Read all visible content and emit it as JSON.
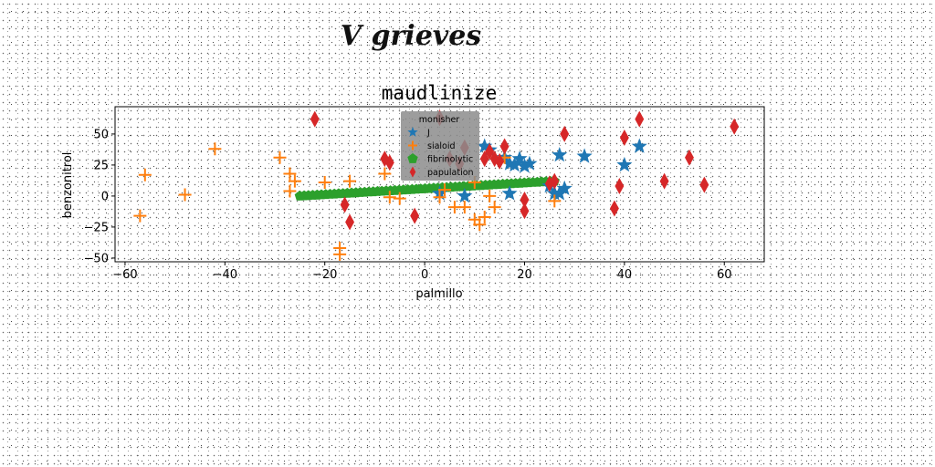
{
  "figure_title": "V grieves",
  "chart_data": {
    "type": "scatter",
    "title": "maudlinize",
    "xlabel": "palmillo",
    "ylabel": "benzonitrol",
    "xlim": [
      -62,
      68
    ],
    "ylim": [
      -53,
      72
    ],
    "xticks": [
      -60,
      -40,
      -20,
      0,
      20,
      40,
      60
    ],
    "xtick_labels": [
      "−60",
      "−40",
      "−20",
      "0",
      "20",
      "40",
      "60"
    ],
    "yticks": [
      -50,
      -25,
      0,
      25,
      50
    ],
    "ytick_labels": [
      "−50",
      "−25",
      "0",
      "25",
      "50"
    ],
    "grid": false,
    "legend": {
      "title": "monisher",
      "placement": "top-center"
    },
    "series": [
      {
        "name": "J",
        "color": "#1f77b4",
        "marker": "star",
        "points": [
          [
            12,
            40
          ],
          [
            13,
            37
          ],
          [
            16,
            31
          ],
          [
            17,
            26
          ],
          [
            18,
            25
          ],
          [
            19,
            30
          ],
          [
            20,
            24
          ],
          [
            21,
            26
          ],
          [
            27,
            33
          ],
          [
            32,
            32
          ],
          [
            40,
            25
          ],
          [
            43,
            40
          ],
          [
            28,
            6
          ],
          [
            25,
            8
          ],
          [
            8,
            0
          ],
          [
            17,
            2
          ],
          [
            3,
            2
          ],
          [
            27,
            2
          ],
          [
            26,
            2
          ]
        ]
      },
      {
        "name": "sialoid",
        "color": "#ff7f0e",
        "marker": "plus",
        "points": [
          [
            -56,
            17
          ],
          [
            -57,
            -16
          ],
          [
            -48,
            1
          ],
          [
            -42,
            38
          ],
          [
            -29,
            31
          ],
          [
            -27,
            18
          ],
          [
            -26,
            12
          ],
          [
            -27,
            4
          ],
          [
            -20,
            11
          ],
          [
            -15,
            12
          ],
          [
            -8,
            18
          ],
          [
            -17,
            -42
          ],
          [
            -17,
            -47
          ],
          [
            -7,
            -1
          ],
          [
            -5,
            -2
          ],
          [
            6,
            -9
          ],
          [
            8,
            -9
          ],
          [
            10,
            -19
          ],
          [
            11,
            -23
          ],
          [
            12,
            -17
          ],
          [
            13,
            0
          ],
          [
            14,
            -9
          ],
          [
            16,
            31
          ],
          [
            26,
            -4
          ],
          [
            4,
            5
          ],
          [
            10,
            11
          ],
          [
            3,
            -1
          ]
        ]
      },
      {
        "name": "fibrinolytic",
        "color": "#2ca02c",
        "marker": "pentagon",
        "line": {
          "from": [
            -25,
            0
          ],
          "to": [
            26,
            12
          ]
        }
      },
      {
        "name": "papulation",
        "color": "#d62728",
        "marker": "diamond",
        "points": [
          [
            -22,
            62
          ],
          [
            -16,
            -7
          ],
          [
            -15,
            -21
          ],
          [
            -8,
            30
          ],
          [
            -7,
            27
          ],
          [
            -2,
            -16
          ],
          [
            3,
            63
          ],
          [
            5,
            30
          ],
          [
            7,
            26
          ],
          [
            8,
            39
          ],
          [
            12,
            30
          ],
          [
            13,
            36
          ],
          [
            14,
            30
          ],
          [
            15,
            28
          ],
          [
            16,
            40
          ],
          [
            20,
            -3
          ],
          [
            20,
            -12
          ],
          [
            25,
            10
          ],
          [
            26,
            12
          ],
          [
            28,
            50
          ],
          [
            38,
            -10
          ],
          [
            39,
            8
          ],
          [
            40,
            47
          ],
          [
            43,
            62
          ],
          [
            48,
            12
          ],
          [
            53,
            31
          ],
          [
            56,
            9
          ],
          [
            62,
            56
          ]
        ]
      }
    ]
  }
}
